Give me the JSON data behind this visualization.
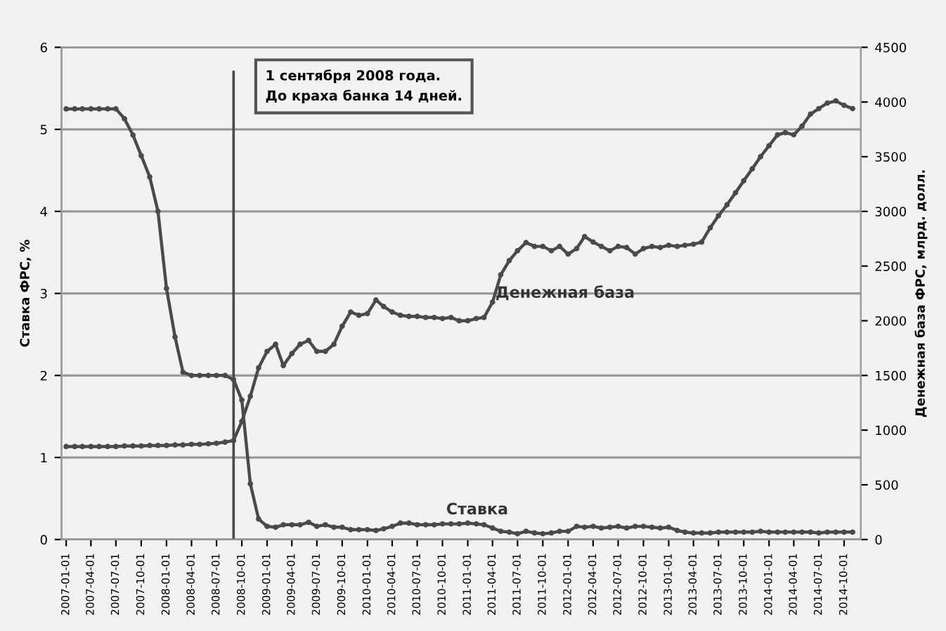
{
  "chart_data": {
    "type": "line",
    "ylabel": "Ставка ФРС, %",
    "y2label": "Денежная база ФРС, млрд. долл.",
    "x": [
      "2007-01",
      "2007-02",
      "2007-03",
      "2007-04",
      "2007-05",
      "2007-06",
      "2007-07",
      "2007-08",
      "2007-09",
      "2007-10",
      "2007-11",
      "2007-12",
      "2008-01",
      "2008-02",
      "2008-03",
      "2008-04",
      "2008-05",
      "2008-06",
      "2008-07",
      "2008-08",
      "2008-09",
      "2008-10",
      "2008-11",
      "2008-12",
      "2009-01",
      "2009-02",
      "2009-03",
      "2009-04",
      "2009-05",
      "2009-06",
      "2009-07",
      "2009-08",
      "2009-09",
      "2009-10",
      "2009-11",
      "2009-12",
      "2010-01",
      "2010-02",
      "2010-03",
      "2010-04",
      "2010-05",
      "2010-06",
      "2010-07",
      "2010-08",
      "2010-09",
      "2010-10",
      "2010-11",
      "2010-12",
      "2011-01",
      "2011-02",
      "2011-03",
      "2011-04",
      "2011-05",
      "2011-06",
      "2011-07",
      "2011-08",
      "2011-09",
      "2011-10",
      "2011-11",
      "2011-12",
      "2012-01",
      "2012-02",
      "2012-03",
      "2012-04",
      "2012-05",
      "2012-06",
      "2012-07",
      "2012-08",
      "2012-09",
      "2012-10",
      "2012-11",
      "2012-12",
      "2013-01",
      "2013-02",
      "2013-03",
      "2013-04",
      "2013-05",
      "2013-06",
      "2013-07",
      "2013-08",
      "2013-09",
      "2013-10",
      "2013-11",
      "2013-12",
      "2014-01",
      "2014-02",
      "2014-03",
      "2014-04",
      "2014-05",
      "2014-06",
      "2014-07",
      "2014-08",
      "2014-09",
      "2014-10",
      "2014-11"
    ],
    "series": [
      {
        "name": "Ставка",
        "color": "#4a4a4a",
        "values": [
          5.25,
          5.25,
          5.25,
          5.25,
          5.25,
          5.25,
          5.25,
          5.13,
          4.93,
          4.68,
          4.42,
          4.0,
          3.06,
          2.47,
          2.04,
          2.0,
          2.0,
          2.0,
          2.0,
          2.0,
          1.95,
          1.7,
          0.68,
          0.25,
          0.16,
          0.15,
          0.18,
          0.18,
          0.18,
          0.21,
          0.16,
          0.18,
          0.15,
          0.15,
          0.12,
          0.12,
          0.12,
          0.11,
          0.13,
          0.16,
          0.2,
          0.2,
          0.18,
          0.18,
          0.18,
          0.19,
          0.19,
          0.19,
          0.2,
          0.19,
          0.18,
          0.14,
          0.1,
          0.09,
          0.07,
          0.1,
          0.08,
          0.07,
          0.08,
          0.1,
          0.1,
          0.16,
          0.15,
          0.16,
          0.14,
          0.15,
          0.16,
          0.14,
          0.16,
          0.16,
          0.15,
          0.14,
          0.15,
          0.11,
          0.09,
          0.08,
          0.08,
          0.08,
          0.09,
          0.09,
          0.09,
          0.09,
          0.09,
          0.1,
          0.09,
          0.09,
          0.09,
          0.09,
          0.09,
          0.09,
          0.08,
          0.09,
          0.09,
          0.09,
          0.09
        ]
      },
      {
        "name": "Денежная база",
        "color": "#4a4a4a",
        "axis": "y2",
        "values": [
          850,
          850,
          850,
          850,
          850,
          850,
          850,
          855,
          855,
          855,
          860,
          860,
          860,
          865,
          865,
          870,
          870,
          875,
          880,
          890,
          905,
          1080,
          1310,
          1570,
          1720,
          1785,
          1590,
          1700,
          1785,
          1820,
          1720,
          1720,
          1785,
          1950,
          2080,
          2050,
          2065,
          2190,
          2130,
          2080,
          2050,
          2040,
          2040,
          2030,
          2030,
          2020,
          2030,
          2000,
          2000,
          2020,
          2030,
          2170,
          2420,
          2550,
          2640,
          2715,
          2680,
          2680,
          2640,
          2680,
          2610,
          2660,
          2770,
          2720,
          2680,
          2640,
          2680,
          2670,
          2610,
          2660,
          2680,
          2670,
          2690,
          2680,
          2690,
          2700,
          2720,
          2850,
          2960,
          3060,
          3170,
          3280,
          3390,
          3500,
          3600,
          3700,
          3720,
          3700,
          3780,
          3890,
          3940,
          3990,
          4010,
          3970,
          3940
        ]
      }
    ],
    "xlim": [
      "2006-12-15",
      "2014-12-01"
    ],
    "xticks": [
      "2007-01-01",
      "2007-04-01",
      "2007-07-01",
      "2007-10-01",
      "2008-01-01",
      "2008-04-01",
      "2008-07-01",
      "2008-10-01",
      "2009-01-01",
      "2009-04-01",
      "2009-07-01",
      "2009-10-01",
      "2010-01-01",
      "2010-04-01",
      "2010-07-01",
      "2010-10-01",
      "2011-01-01",
      "2011-04-01",
      "2011-07-01",
      "2011-10-01",
      "2012-01-01",
      "2012-04-01",
      "2012-07-01",
      "2012-10-01",
      "2013-01-01",
      "2013-04-01",
      "2013-07-01",
      "2013-10-01",
      "2014-01-01",
      "2014-04-01",
      "2014-07-01",
      "2014-10-01"
    ],
    "ylim": [
      0,
      6
    ],
    "yticks": [
      0,
      1,
      2,
      3,
      4,
      5,
      6
    ],
    "y2lim": [
      0,
      4500
    ],
    "y2ticks": [
      0,
      500,
      1000,
      1500,
      2000,
      2500,
      3000,
      3500,
      4000,
      4500
    ],
    "ref_lines": [
      {
        "axis": "x",
        "value": "2008-09-01",
        "color": "#4a4a4a"
      }
    ],
    "annotations": [
      "1 сентября 2008 года.\nДо краха банка 14 дней."
    ],
    "grid": "y",
    "legend": false,
    "marker": "circle",
    "line_style": "solid"
  }
}
